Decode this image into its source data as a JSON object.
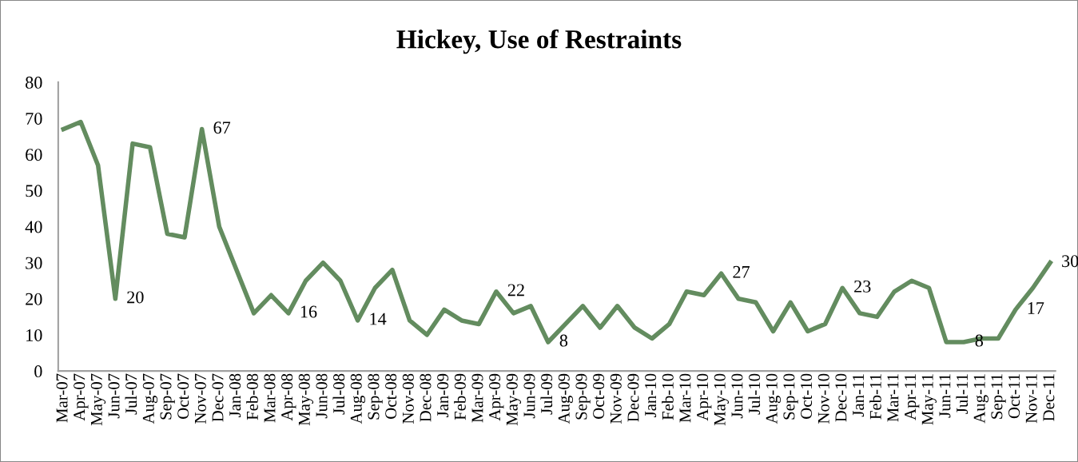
{
  "chart_data": {
    "type": "line",
    "title": "Hickey, Use of Restraints",
    "categories": [
      "Mar-07",
      "Apr-07",
      "May-07",
      "Jun-07",
      "Jul-07",
      "Aug-07",
      "Sep-07",
      "Oct-07",
      "Nov-07",
      "Dec-07",
      "Jan-08",
      "Feb-08",
      "Mar-08",
      "Apr-08",
      "May-08",
      "Jun-08",
      "Jul-08",
      "Aug-08",
      "Sep-08",
      "Oct-08",
      "Nov-08",
      "Dec-08",
      "Jan-09",
      "Feb-09",
      "Mar-09",
      "Apr-09",
      "May-09",
      "Jun-09",
      "Jul-09",
      "Aug-09",
      "Sep-09",
      "Oct-09",
      "Nov-09",
      "Dec-09",
      "Jan-10",
      "Feb-10",
      "Mar-10",
      "Apr-10",
      "May-10",
      "Jun-10",
      "Jul-10",
      "Aug-10",
      "Sep-10",
      "Oct-10",
      "Nov-10",
      "Dec-10",
      "Jan-11",
      "Feb-11",
      "Mar-11",
      "Apr-11",
      "May-11",
      "Jun-11",
      "Jul-11",
      "Aug-11",
      "Sep-11",
      "Oct-11",
      "Nov-11",
      "Dec-11"
    ],
    "series": [
      {
        "color": "#638c5f",
        "values": [
          67,
          69,
          57,
          20,
          63,
          62,
          38,
          37,
          67,
          40,
          28,
          16,
          21,
          16,
          25,
          30,
          25,
          14,
          23,
          28,
          14,
          10,
          17,
          14,
          13,
          22,
          16,
          18,
          8,
          13,
          18,
          12,
          18,
          12,
          9,
          13,
          22,
          21,
          27,
          20,
          19,
          11,
          19,
          11,
          13,
          23,
          16,
          15,
          22,
          25,
          23,
          8,
          8,
          9,
          9,
          17,
          23,
          30
        ]
      }
    ],
    "annotations": [
      {
        "text": "20",
        "x": "Jun-07",
        "y": 20
      },
      {
        "text": "67",
        "x": "Nov-07",
        "y": 67
      },
      {
        "text": "16",
        "x": "Apr-08",
        "y": 16
      },
      {
        "text": "14",
        "x": "Aug-08",
        "y": 14
      },
      {
        "text": "22",
        "x": "Apr-09",
        "y": 22
      },
      {
        "text": "8",
        "x": "Jul-09",
        "y": 8
      },
      {
        "text": "27",
        "x": "May-10",
        "y": 27
      },
      {
        "text": "23",
        "x": "Dec-10",
        "y": 23
      },
      {
        "text": "8",
        "x": "Jul-11",
        "y": 8
      },
      {
        "text": "17",
        "x": "Oct-11",
        "y": 17
      },
      {
        "text": "30",
        "x": "Dec-11",
        "y": 30
      }
    ],
    "ylim": [
      0,
      80
    ],
    "yticks": [
      0,
      10,
      20,
      30,
      40,
      50,
      60,
      70,
      80
    ],
    "grid": false,
    "legend": false,
    "marker": "none",
    "line_style": "solid"
  }
}
